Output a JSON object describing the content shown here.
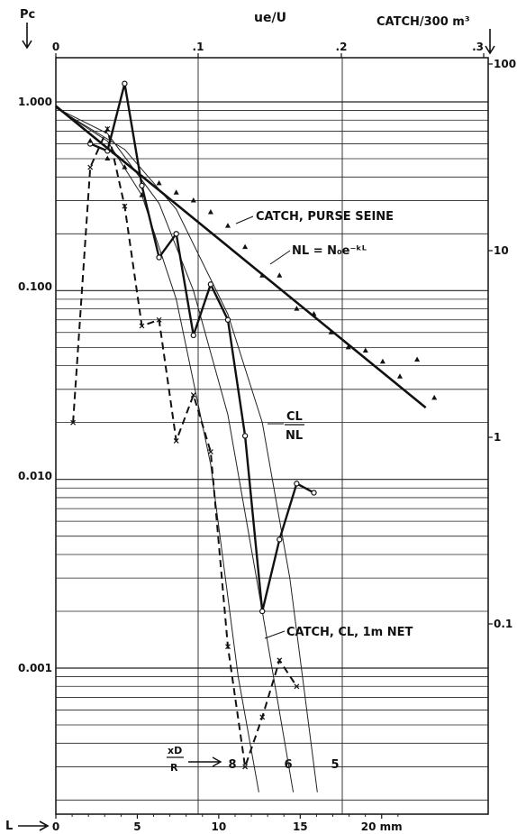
{
  "chart_data": {
    "type": "line",
    "axes": {
      "left_title": "Pc",
      "left_ticks": [
        "1.000",
        "0.100",
        "0.010",
        "0.001"
      ],
      "top_title": "ue/U",
      "top_ticks": [
        "0",
        ".1",
        ".2",
        ".3"
      ],
      "right_title": "CATCH/300 m³",
      "right_ticks": [
        "100",
        "10",
        "1",
        "0.1"
      ],
      "bottom_title": "L",
      "bottom_ticks": [
        "0",
        "5",
        "10",
        "15",
        "20 mm"
      ],
      "xd_label_top": "xD",
      "xd_label_bottom": "R",
      "xd_ticks": [
        "8",
        "6",
        "5"
      ],
      "left_scale": "log",
      "left_range": [
        0.0002,
        1.5
      ],
      "x_range_mm": [
        0,
        22
      ]
    },
    "annotations": {
      "catch_purse": "CATCH, PURSE SEINE",
      "nl_formula": "NL = N₀e⁻ᵏᴸ",
      "cl_num": "CL",
      "cl_den": "NL",
      "catch_net": "CATCH, CL, 1m NET"
    },
    "series": [
      {
        "key": "cl_nl",
        "style": "solid-circle",
        "points": [
          [
            2,
            0.6
          ],
          [
            3,
            0.55
          ],
          [
            4,
            1.25
          ],
          [
            5,
            0.36
          ],
          [
            6,
            0.15
          ],
          [
            7,
            0.2
          ],
          [
            8,
            0.058
          ],
          [
            9,
            0.108
          ],
          [
            10,
            0.07
          ],
          [
            11,
            0.017
          ],
          [
            12,
            0.002
          ],
          [
            13,
            0.0048
          ],
          [
            14,
            0.0095
          ],
          [
            15,
            0.0085
          ]
        ]
      },
      {
        "key": "catch_1m_net",
        "style": "dashed-x",
        "points": [
          [
            1,
            0.02
          ],
          [
            2,
            0.45
          ],
          [
            3,
            0.72
          ],
          [
            4,
            0.28
          ],
          [
            5,
            0.065
          ],
          [
            6,
            0.07
          ],
          [
            7,
            0.016
          ],
          [
            8,
            0.028
          ],
          [
            9,
            0.014
          ],
          [
            10,
            0.0013
          ],
          [
            11,
            0.0003
          ],
          [
            12,
            0.00055
          ],
          [
            13,
            0.0011
          ],
          [
            14,
            0.0008
          ]
        ]
      },
      {
        "key": "purse_seine",
        "style": "triangles",
        "points": [
          [
            2,
            0.62
          ],
          [
            3,
            0.5
          ],
          [
            4,
            0.45
          ],
          [
            5,
            0.32
          ],
          [
            6,
            0.37
          ],
          [
            7,
            0.33
          ],
          [
            8,
            0.3
          ],
          [
            9,
            0.26
          ],
          [
            10,
            0.22
          ],
          [
            11,
            0.17
          ],
          [
            12,
            0.12
          ],
          [
            13,
            0.12
          ],
          [
            14,
            0.08
          ],
          [
            15,
            0.075
          ],
          [
            16,
            0.06
          ],
          [
            17,
            0.05
          ],
          [
            18,
            0.048
          ],
          [
            19,
            0.042
          ],
          [
            20,
            0.035
          ],
          [
            21,
            0.043
          ],
          [
            22,
            0.027
          ]
        ]
      },
      {
        "key": "nl_fit",
        "style": "thick-line",
        "points": [
          [
            0,
            0.95
          ],
          [
            21.5,
            0.024
          ]
        ]
      }
    ],
    "curves": [
      {
        "key": "xd8",
        "points": [
          [
            0,
            0.93
          ],
          [
            3,
            0.62
          ],
          [
            5,
            0.32
          ],
          [
            7,
            0.09
          ],
          [
            9,
            0.012
          ],
          [
            10.6,
            0.0009
          ],
          [
            11.8,
            0.00022
          ]
        ]
      },
      {
        "key": "xd6",
        "points": [
          [
            0,
            0.93
          ],
          [
            3,
            0.68
          ],
          [
            6,
            0.29
          ],
          [
            8,
            0.1
          ],
          [
            10,
            0.022
          ],
          [
            12,
            0.002
          ],
          [
            13.8,
            0.00022
          ]
        ]
      },
      {
        "key": "xd5",
        "points": [
          [
            0,
            0.93
          ],
          [
            4,
            0.56
          ],
          [
            7,
            0.27
          ],
          [
            10,
            0.075
          ],
          [
            12,
            0.02
          ],
          [
            13.6,
            0.003
          ],
          [
            15.2,
            0.00022
          ]
        ]
      }
    ]
  }
}
